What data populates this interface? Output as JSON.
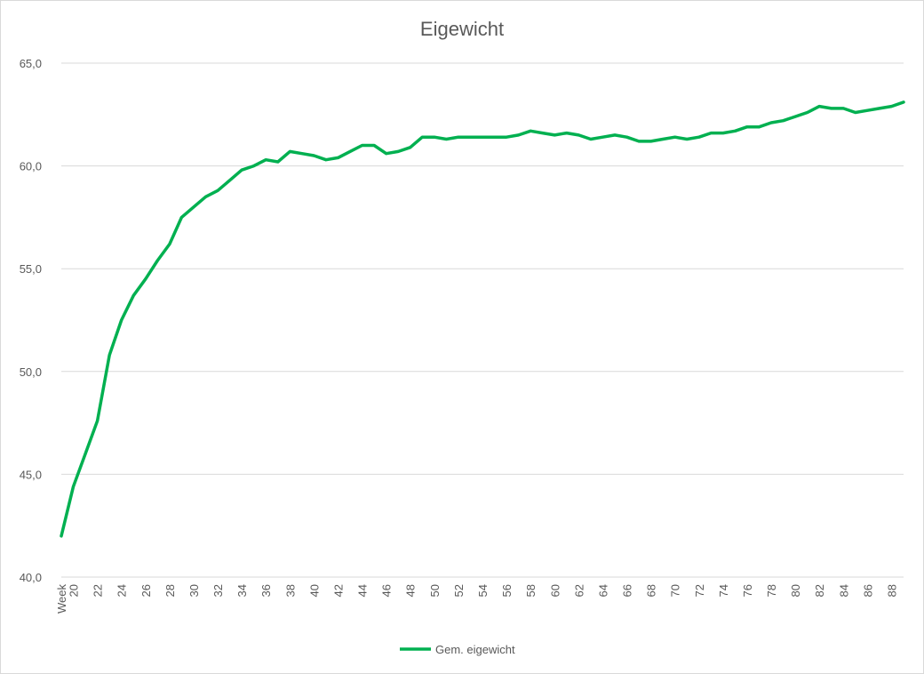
{
  "chart_data": {
    "type": "line",
    "title": "Eigewicht",
    "xlabel": "",
    "ylabel": "",
    "ylim": [
      40,
      65
    ],
    "y_ticks": [
      "40,0",
      "45,0",
      "50,0",
      "55,0",
      "60,0",
      "65,0"
    ],
    "y_tick_values": [
      40,
      45,
      50,
      55,
      60,
      65
    ],
    "x_first_label": "Week",
    "x_tick_labels": [
      "20",
      "22",
      "24",
      "26",
      "28",
      "30",
      "32",
      "34",
      "36",
      "38",
      "40",
      "42",
      "44",
      "46",
      "48",
      "50",
      "52",
      "54",
      "56",
      "58",
      "60",
      "62",
      "64",
      "66",
      "68",
      "70",
      "72",
      "74",
      "76",
      "78",
      "80",
      "82",
      "84",
      "86",
      "88"
    ],
    "grid": true,
    "legend_position": "bottom",
    "colors": {
      "series": "#00b050",
      "grid": "#d9d9d9",
      "text": "#595959"
    },
    "x": [
      19,
      20,
      21,
      22,
      23,
      24,
      25,
      26,
      27,
      28,
      29,
      30,
      31,
      32,
      33,
      34,
      35,
      36,
      37,
      38,
      39,
      40,
      41,
      42,
      43,
      44,
      45,
      46,
      47,
      48,
      49,
      50,
      51,
      52,
      53,
      54,
      55,
      56,
      57,
      58,
      59,
      60,
      61,
      62,
      63,
      64,
      65,
      66,
      67,
      68,
      69,
      70,
      71,
      72,
      73,
      74,
      75,
      76,
      77,
      78,
      79,
      80,
      81,
      82,
      83,
      84,
      85,
      86,
      87,
      88,
      89
    ],
    "series": [
      {
        "name": "Gem. eigewicht",
        "values": [
          42.0,
          44.4,
          46.0,
          47.6,
          50.8,
          52.5,
          53.7,
          54.5,
          55.4,
          56.2,
          57.5,
          58.0,
          58.5,
          58.8,
          59.3,
          59.8,
          60.0,
          60.3,
          60.2,
          60.7,
          60.6,
          60.5,
          60.3,
          60.4,
          60.7,
          61.0,
          61.0,
          60.6,
          60.7,
          60.9,
          61.4,
          61.4,
          61.3,
          61.4,
          61.4,
          61.4,
          61.4,
          61.4,
          61.5,
          61.7,
          61.6,
          61.5,
          61.6,
          61.5,
          61.3,
          61.4,
          61.5,
          61.4,
          61.2,
          61.2,
          61.3,
          61.4,
          61.3,
          61.4,
          61.6,
          61.6,
          61.7,
          61.9,
          61.9,
          62.1,
          62.2,
          62.4,
          62.6,
          62.9,
          62.8,
          62.8,
          62.6,
          62.7,
          62.8,
          62.9,
          63.1
        ]
      }
    ]
  }
}
